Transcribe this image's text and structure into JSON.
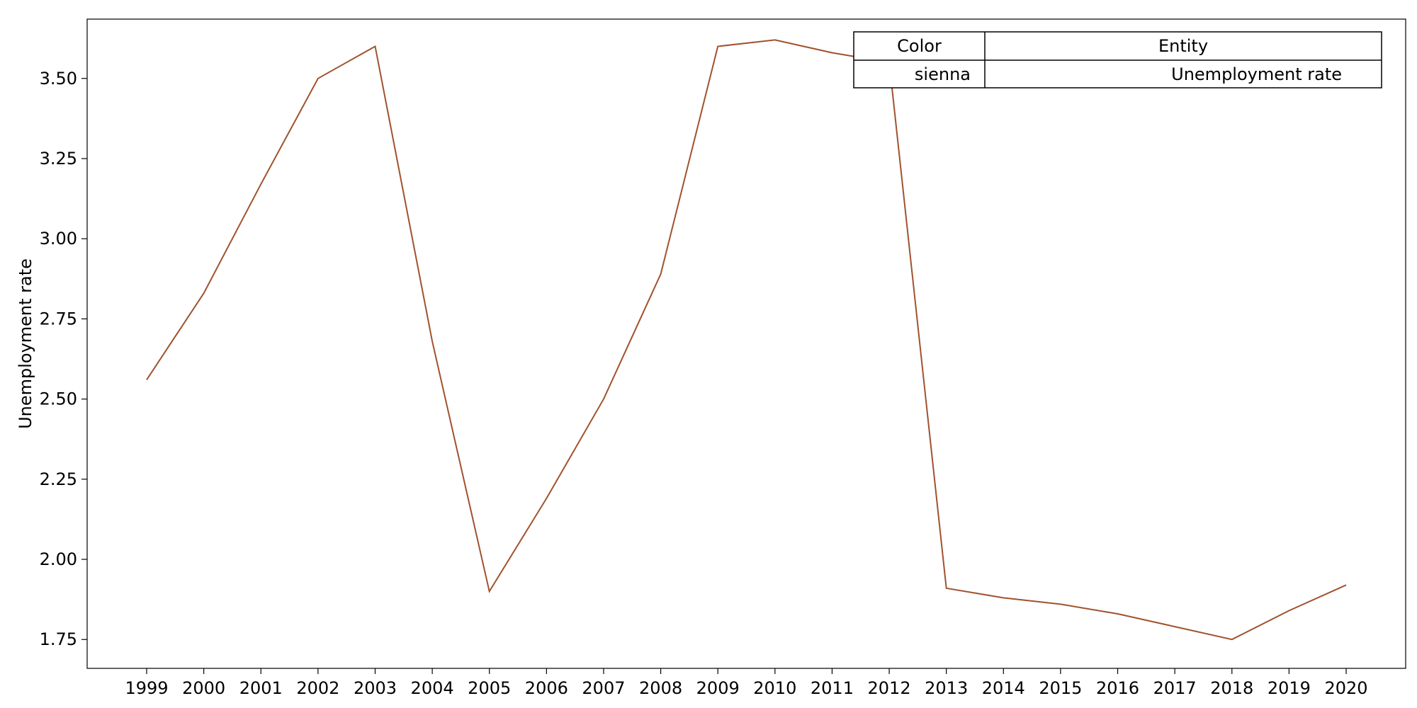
{
  "chart_data": {
    "type": "line",
    "title": "",
    "xlabel": "",
    "ylabel": "Unemployment rate",
    "x": [
      "1999",
      "2000",
      "2001",
      "2002",
      "2003",
      "2004",
      "2005",
      "2006",
      "2007",
      "2008",
      "2009",
      "2010",
      "2011",
      "2012",
      "2013",
      "2014",
      "2015",
      "2016",
      "2017",
      "2018",
      "2019",
      "2020"
    ],
    "series": [
      {
        "name": "Unemployment rate",
        "color": "#a0522d",
        "values": [
          2.56,
          2.83,
          3.17,
          3.5,
          3.6,
          2.68,
          1.9,
          2.19,
          2.5,
          2.89,
          3.6,
          3.62,
          3.58,
          3.55,
          1.91,
          1.88,
          1.86,
          1.83,
          1.79,
          1.75,
          1.84,
          1.92
        ]
      }
    ],
    "ylim": [
      1.66,
      3.685
    ],
    "yticks": [
      "1.75",
      "2.00",
      "2.25",
      "2.50",
      "2.75",
      "3.00",
      "3.25",
      "3.50"
    ],
    "grid": false,
    "legend": {
      "placement": "top-right",
      "headers": [
        "Color",
        "Entity"
      ],
      "rows": [
        {
          "color_name": "sienna",
          "entity": "Unemployment rate"
        }
      ]
    }
  }
}
